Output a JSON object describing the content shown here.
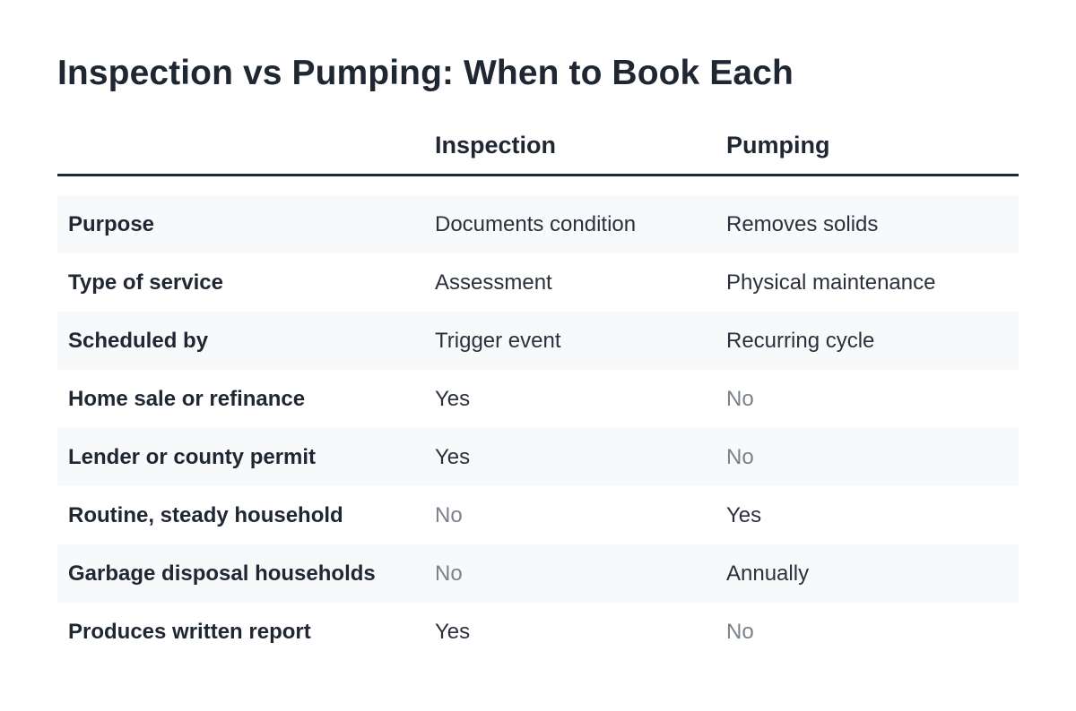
{
  "title": "Inspection vs Pumping: When to Book Each",
  "columns": [
    "",
    "Inspection",
    "Pumping"
  ],
  "rows": [
    {
      "label": "Purpose",
      "inspection": "Documents condition",
      "pumping": "Removes solids"
    },
    {
      "label": "Type of service",
      "inspection": "Assessment",
      "pumping": "Physical maintenance"
    },
    {
      "label": "Scheduled by",
      "inspection": "Trigger event",
      "pumping": "Recurring cycle"
    },
    {
      "label": "Home sale or refinance",
      "inspection": "Yes",
      "pumping": "No"
    },
    {
      "label": "Lender or county permit",
      "inspection": "Yes",
      "pumping": "No"
    },
    {
      "label": "Routine, steady household",
      "inspection": "No",
      "pumping": "Yes"
    },
    {
      "label": "Garbage disposal households",
      "inspection": "No",
      "pumping": "Annually"
    },
    {
      "label": "Produces written report",
      "inspection": "Yes",
      "pumping": "No"
    }
  ],
  "colors": {
    "text": "#1f2733",
    "muted": "#7b828c",
    "row_shade": "#f8f9fb",
    "rule": "#1f2733"
  }
}
